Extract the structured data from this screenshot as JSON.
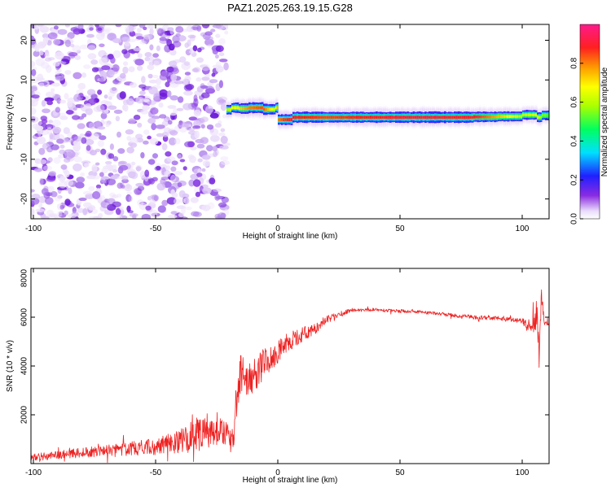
{
  "figure_title": "PAZ1.2025.263.19.15.G28",
  "colors": {
    "snr_line": "#ee2222",
    "axis": "#000000",
    "background": "#ffffff"
  },
  "chart_data": [
    {
      "type": "heatmap",
      "name": "spectrogram",
      "xlabel": "Height of straight line (km)",
      "ylabel": "Frequency (Hz)",
      "xlim": [
        -101,
        111
      ],
      "ylim": [
        -25,
        24
      ],
      "xticks": [
        -100,
        -50,
        0,
        50,
        100
      ],
      "yticks": [
        -20,
        -10,
        0,
        10,
        20
      ],
      "noise_region_x": [
        -101,
        -21
      ],
      "signal_trace": {
        "x": [
          -21,
          -19,
          -16,
          -12,
          -6,
          -1,
          0,
          2,
          6,
          20,
          40,
          60,
          80,
          90,
          100,
          106,
          108,
          111
        ],
        "freq": [
          2.5,
          3,
          2.8,
          3,
          2.6,
          3,
          0,
          0,
          0.6,
          0.6,
          0.6,
          0.6,
          0.7,
          0.8,
          1.2,
          0.6,
          1.1,
          0.8
        ],
        "amp": [
          0.55,
          0.65,
          0.7,
          0.8,
          0.85,
          0.6,
          0.8,
          0.85,
          0.9,
          0.85,
          0.9,
          0.92,
          0.9,
          0.75,
          0.6,
          0.65,
          0.55,
          0.5
        ]
      },
      "colorbar": {
        "label": "Normalized spectral amplitude",
        "range": [
          0,
          1
        ],
        "ticks": [
          "0.0",
          "0.2",
          "0.4",
          "0.6",
          "0.8"
        ]
      }
    },
    {
      "type": "line",
      "name": "snr",
      "xlabel": "Height of straight line (km)",
      "ylabel": "SNR (10 * v/v)",
      "xlim": [
        -101,
        111
      ],
      "ylim": [
        0,
        8000
      ],
      "xticks": [
        -100,
        -50,
        0,
        50,
        100
      ],
      "yticks": [
        2000,
        4000,
        6000,
        8000
      ],
      "series": [
        {
          "name": "SNR",
          "x": [
            -101,
            -90,
            -80,
            -70,
            -60,
            -50,
            -40,
            -35,
            -30,
            -25,
            -20,
            -18,
            -17,
            -15,
            -13,
            -10,
            -5,
            0,
            5,
            10,
            15,
            20,
            25,
            30,
            35,
            40,
            50,
            60,
            70,
            80,
            90,
            100,
            104,
            106,
            107,
            108,
            109,
            110,
            111
          ],
          "y": [
            250,
            350,
            450,
            520,
            600,
            700,
            900,
            1100,
            1400,
            1300,
            1200,
            900,
            2500,
            3900,
            3300,
            3600,
            4200,
            4600,
            5000,
            5300,
            5500,
            5900,
            6100,
            6300,
            6300,
            6300,
            6250,
            6200,
            6100,
            6000,
            5950,
            5850,
            5500,
            6200,
            4300,
            7000,
            5700,
            5700,
            5700
          ],
          "noise_amp": [
            150,
            180,
            200,
            250,
            300,
            350,
            500,
            650,
            750,
            600,
            550,
            400,
            900,
            900,
            700,
            700,
            650,
            500,
            400,
            300,
            220,
            150,
            120,
            80,
            70,
            70,
            70,
            70,
            70,
            80,
            90,
            100,
            400,
            600,
            700,
            700,
            200,
            120,
            100
          ]
        }
      ]
    }
  ]
}
